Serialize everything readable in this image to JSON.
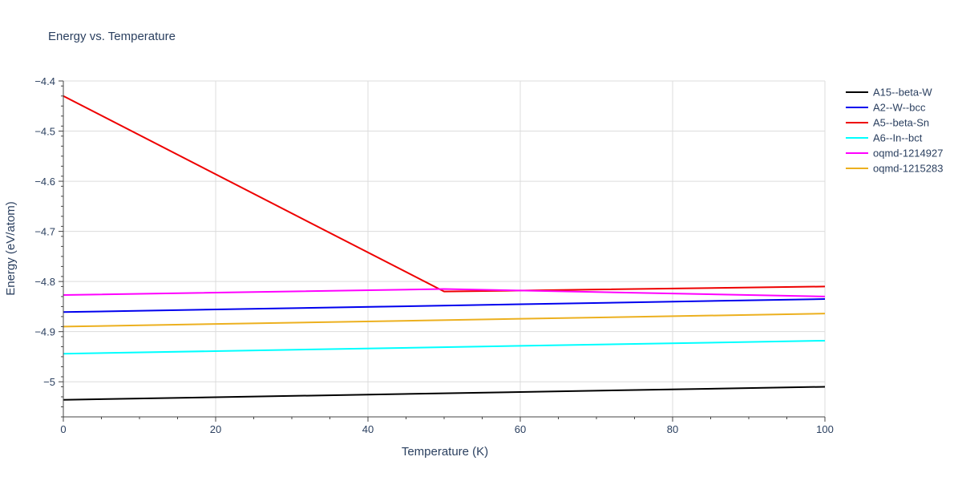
{
  "chart_data": {
    "type": "line",
    "title": "Energy vs. Temperature",
    "xlabel": "Temperature (K)",
    "ylabel": "Energy (eV/atom)",
    "xlim": [
      0,
      100
    ],
    "ylim": [
      -5.07,
      -4.4
    ],
    "x_ticks": [
      0,
      20,
      40,
      60,
      80,
      100
    ],
    "x_tick_labels": [
      "0",
      "20",
      "40",
      "60",
      "80",
      "100"
    ],
    "y_ticks": [
      -5.0,
      -4.9,
      -4.8,
      -4.7,
      -4.6,
      -4.5,
      -4.4
    ],
    "y_tick_labels": [
      "−5",
      "−4.9",
      "−4.8",
      "−4.7",
      "−4.6",
      "−4.5",
      "−4.4"
    ],
    "grid": true,
    "legend_position": "right",
    "series": [
      {
        "name": "A15--beta-W",
        "color": "#000000",
        "x": [
          0,
          100
        ],
        "y": [
          -5.036,
          -5.01
        ]
      },
      {
        "name": "A2--W--bcc",
        "color": "#0000ee",
        "x": [
          0,
          100
        ],
        "y": [
          -4.861,
          -4.835
        ]
      },
      {
        "name": "A5--beta-Sn",
        "color": "#ee0000",
        "x": [
          0,
          50,
          100
        ],
        "y": [
          -4.43,
          -4.82,
          -4.81
        ]
      },
      {
        "name": "A6--In--bct",
        "color": "#00ffff",
        "x": [
          0,
          100
        ],
        "y": [
          -4.944,
          -4.918
        ]
      },
      {
        "name": "oqmd-1214927",
        "color": "#ff00ff",
        "x": [
          0,
          50,
          100
        ],
        "y": [
          -4.827,
          -4.815,
          -4.83
        ]
      },
      {
        "name": "oqmd-1215283",
        "color": "#ecb01f",
        "x": [
          0,
          100
        ],
        "y": [
          -4.89,
          -4.864
        ]
      }
    ]
  }
}
